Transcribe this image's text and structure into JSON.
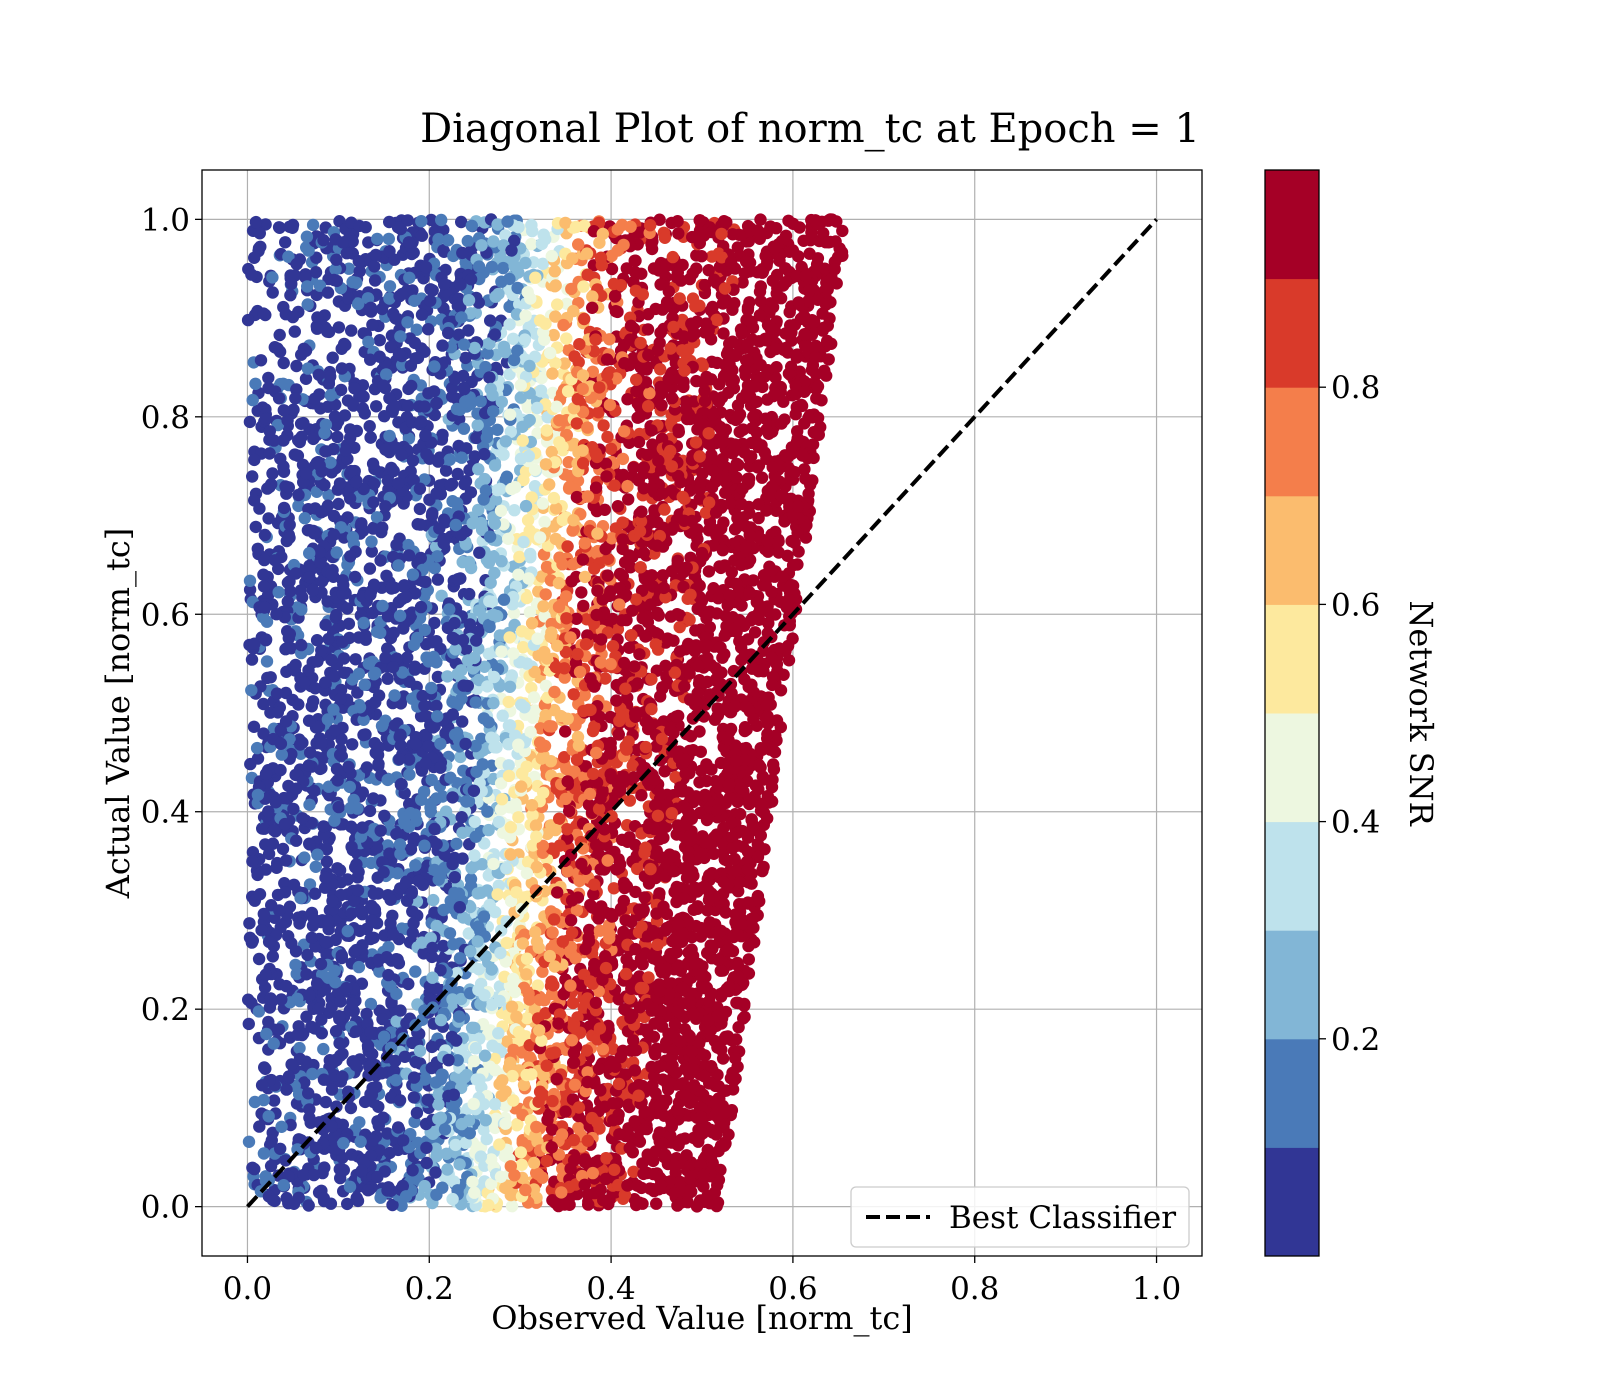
{
  "chart_data": {
    "type": "scatter",
    "title": "Diagonal Plot of norm_tc at Epoch = 1",
    "xlabel": "Observed Value [norm_tc]",
    "ylabel": "Actual Value [norm_tc]",
    "xlim": [
      -0.05,
      1.05
    ],
    "ylim": [
      -0.05,
      1.05
    ],
    "xticks": [
      "0.0",
      "0.2",
      "0.4",
      "0.6",
      "0.8",
      "1.0"
    ],
    "yticks": [
      "0.0",
      "0.2",
      "0.4",
      "0.6",
      "0.8",
      "1.0"
    ],
    "grid": true,
    "series": [
      {
        "name": "Best Classifier",
        "style": "dashed-line",
        "color": "#000000",
        "x": [
          0.0,
          1.0
        ],
        "y": [
          0.0,
          1.0
        ]
      }
    ],
    "scatter_summary": {
      "x_range_at_y0": [
        0.0,
        0.52
      ],
      "x_range_at_y1": [
        0.0,
        0.66
      ],
      "y_range": [
        0.0,
        1.0
      ],
      "color_dimension": "Network SNR",
      "trend": "low Network SNR (blue) at small observed values, high Network SNR (dark red) at large observed values"
    },
    "legend": {
      "position": "lower-right",
      "entries": [
        "Best Classifier"
      ]
    },
    "colorbar": {
      "label": "Network SNR",
      "range": [
        0.0,
        1.0
      ],
      "ticks": [
        "0.2",
        "0.4",
        "0.6",
        "0.8"
      ],
      "bins": [
        {
          "from": 0.0,
          "to": 0.1,
          "color": "#313695"
        },
        {
          "from": 0.1,
          "to": 0.2,
          "color": "#4a7ab8"
        },
        {
          "from": 0.2,
          "to": 0.3,
          "color": "#82b6d6"
        },
        {
          "from": 0.3,
          "to": 0.4,
          "color": "#bee2ec"
        },
        {
          "from": 0.4,
          "to": 0.5,
          "color": "#edf7e0"
        },
        {
          "from": 0.5,
          "to": 0.6,
          "color": "#fde99e"
        },
        {
          "from": 0.6,
          "to": 0.7,
          "color": "#fbbc6e"
        },
        {
          "from": 0.7,
          "to": 0.8,
          "color": "#f47e4b"
        },
        {
          "from": 0.8,
          "to": 0.9,
          "color": "#d93a2a"
        },
        {
          "from": 0.9,
          "to": 1.0,
          "color": "#a50026"
        }
      ]
    }
  }
}
